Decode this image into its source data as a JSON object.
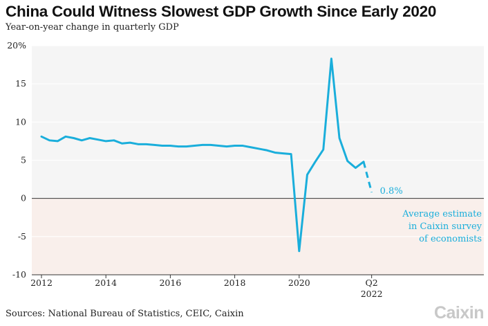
{
  "header": {
    "title": "China Could Witness Slowest GDP Growth Since Early 2020",
    "subtitle": "Year-on-year change in quarterly GDP"
  },
  "footer": {
    "source": "Sources: National Bureau of Statistics, CEIC, Caixin",
    "logo": "Caixin"
  },
  "colors": {
    "line": "#1aaedb",
    "negative_band": "#f9efeb",
    "positive_band": "#f5f5f5",
    "grid": "#ffffff"
  },
  "chart_data": {
    "type": "line",
    "title": "China Could Witness Slowest GDP Growth Since Early 2020",
    "subtitle": "Year-on-year change in quarterly GDP",
    "xlabel": "",
    "ylabel": "",
    "ylim": [
      -10,
      20
    ],
    "xlim": [
      "2012-Q1",
      "2022-Q4"
    ],
    "y_ticks": [
      {
        "value": 20,
        "label": "20%"
      },
      {
        "value": 15,
        "label": "15"
      },
      {
        "value": 10,
        "label": "10"
      },
      {
        "value": 5,
        "label": "5"
      },
      {
        "value": 0,
        "label": "0"
      },
      {
        "value": -5,
        "label": "-5"
      },
      {
        "value": -10,
        "label": "-10"
      }
    ],
    "x_ticks": [
      {
        "x": "2012-Q1",
        "label": "2012"
      },
      {
        "x": "2014-Q1",
        "label": "2014"
      },
      {
        "x": "2016-Q1",
        "label": "2016"
      },
      {
        "x": "2018-Q1",
        "label": "2018"
      },
      {
        "x": "2020-Q1",
        "label": "2020"
      },
      {
        "x": "2022-Q2",
        "label": "Q2",
        "sublabel": "2022"
      }
    ],
    "grid": true,
    "series": [
      {
        "style": "solid",
        "x": [
          "2012-Q1",
          "2012-Q2",
          "2012-Q3",
          "2012-Q4",
          "2013-Q1",
          "2013-Q2",
          "2013-Q3",
          "2013-Q4",
          "2014-Q1",
          "2014-Q2",
          "2014-Q3",
          "2014-Q4",
          "2015-Q1",
          "2015-Q2",
          "2015-Q3",
          "2015-Q4",
          "2016-Q1",
          "2016-Q2",
          "2016-Q3",
          "2016-Q4",
          "2017-Q1",
          "2017-Q2",
          "2017-Q3",
          "2017-Q4",
          "2018-Q1",
          "2018-Q2",
          "2018-Q3",
          "2018-Q4",
          "2019-Q1",
          "2019-Q2",
          "2019-Q3",
          "2019-Q4",
          "2020-Q1",
          "2020-Q2",
          "2020-Q3",
          "2020-Q4",
          "2021-Q1",
          "2021-Q2",
          "2021-Q3",
          "2021-Q4",
          "2022-Q1"
        ],
        "values": [
          8.1,
          7.6,
          7.5,
          8.1,
          7.9,
          7.6,
          7.9,
          7.7,
          7.5,
          7.6,
          7.2,
          7.3,
          7.1,
          7.1,
          7.0,
          6.9,
          6.9,
          6.8,
          6.8,
          6.9,
          7.0,
          7.0,
          6.9,
          6.8,
          6.9,
          6.9,
          6.7,
          6.5,
          6.3,
          6.0,
          5.9,
          5.8,
          -6.9,
          3.1,
          4.8,
          6.4,
          18.3,
          7.9,
          4.9,
          4.0,
          4.8
        ]
      },
      {
        "style": "dashed",
        "x": [
          "2022-Q1",
          "2022-Q2"
        ],
        "values": [
          4.8,
          0.8
        ]
      }
    ],
    "annotations": [
      {
        "x": "2022-Q2",
        "y": 0.8,
        "label": "0.8%"
      },
      {
        "lines": [
          "Average estimate",
          "in Caixin survey",
          "of economists"
        ]
      }
    ]
  }
}
